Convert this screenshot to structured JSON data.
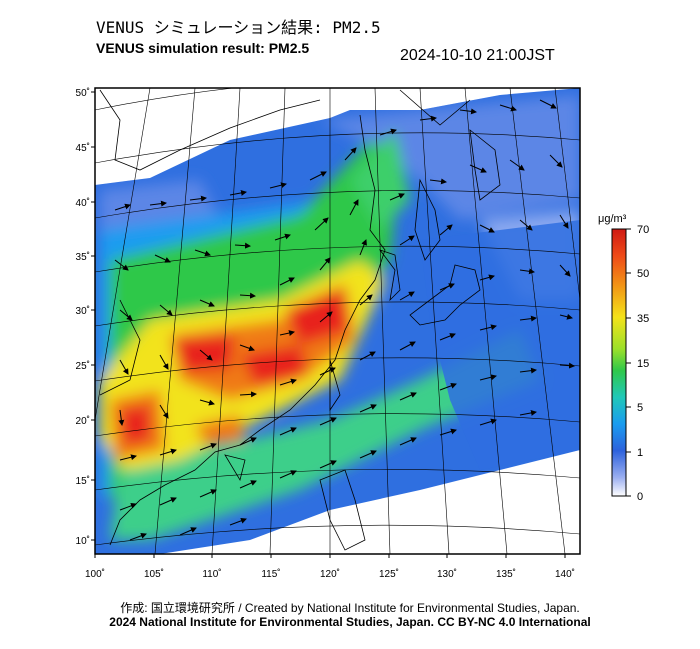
{
  "header": {
    "title_jp": "VENUS シミュレーション結果: PM2.5",
    "title_en": "VENUS simulation result: PM2.5",
    "datetime": "2024-10-10 21:00JST"
  },
  "map": {
    "lat_labels": [
      "50˚",
      "45˚",
      "40˚",
      "35˚",
      "30˚",
      "25˚",
      "20˚",
      "15˚",
      "10˚"
    ],
    "lon_labels": [
      "100˚",
      "105˚",
      "110˚",
      "115˚",
      "120˚",
      "125˚",
      "130˚",
      "135˚",
      "140˚"
    ],
    "field": "PM2.5 concentration with wind vectors",
    "colors": {
      "background_land": "#ffffff",
      "ocean_low": "#2f6fe0",
      "very_low": "#8aa8f0",
      "mid": "#2fc84a",
      "high": "#f2e31a",
      "very_high": "#f07a12",
      "extreme": "#e8231a"
    }
  },
  "colorbar": {
    "unit": "μg/m³",
    "ticks": [
      "70",
      "50",
      "35",
      "15",
      "5",
      "1",
      "0"
    ]
  },
  "footer": {
    "credit": "作成: 国立環境研究所 / Created by National Institute for Environmental Studies, Japan.",
    "copyright": "2024 National Institute for Environmental Studies, Japan. CC BY-NC 4.0 International"
  }
}
